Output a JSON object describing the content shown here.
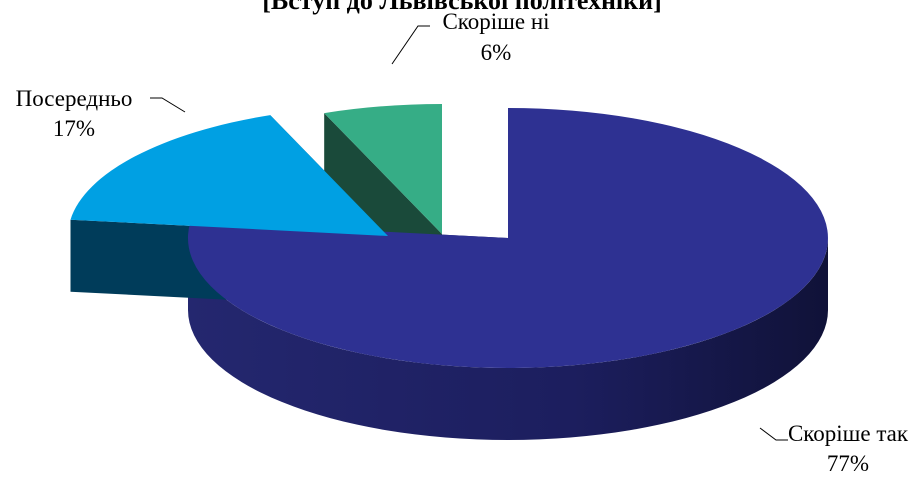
{
  "chart_data": {
    "type": "pie",
    "title": "[Вступ до Львівської політехніки]",
    "style": "3d-exploded",
    "categories": [
      "Скоріше так",
      "Посередньо",
      "Скоріше ні"
    ],
    "values": [
      77,
      17,
      6
    ],
    "value_labels": [
      "77%",
      "17%",
      "6%"
    ],
    "colors": [
      "#2e3192",
      "#00a0e3",
      "#36ad86"
    ],
    "side_colors": [
      "#1a1c5c",
      "#003c5a",
      "#1a4a3a"
    ],
    "legend": "none"
  }
}
